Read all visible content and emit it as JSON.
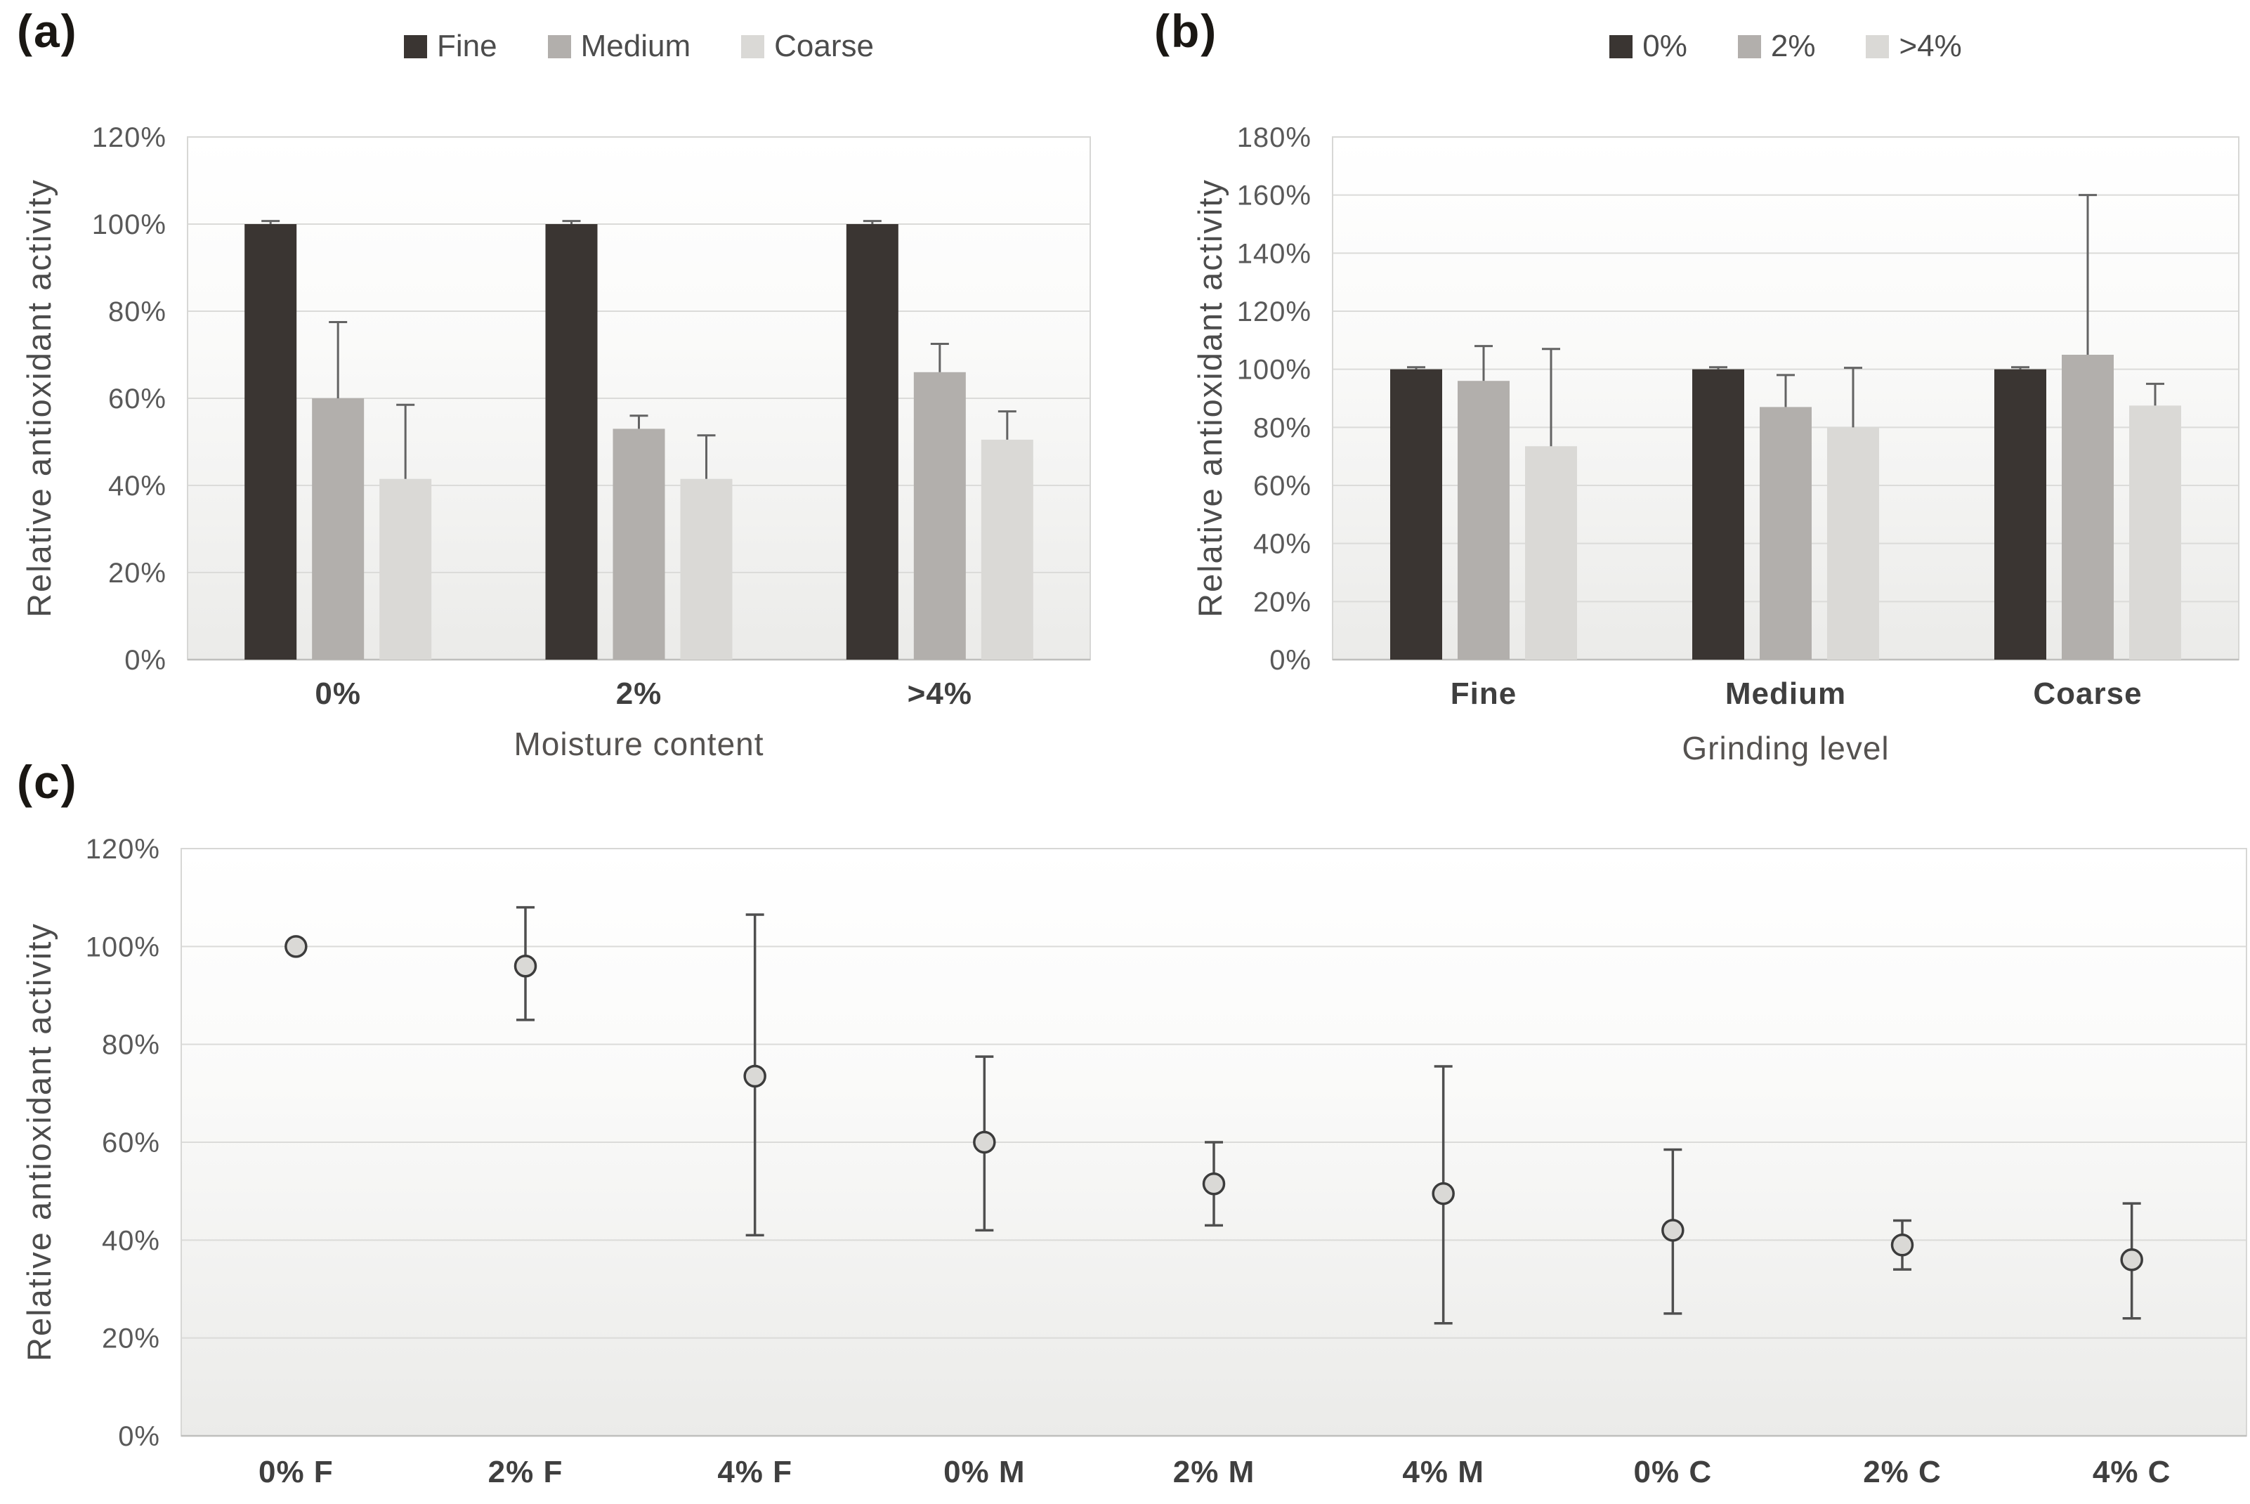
{
  "ui_colors": {
    "series_dark": "#3a3532",
    "series_medium": "#b2afac",
    "series_light": "#dad9d6",
    "error_bar": "#636363",
    "gridline": "#dbdbd9",
    "axis_line": "#bfbfbd",
    "tick_text": "#595959",
    "category_text": "#3f3f3f"
  },
  "chart_data": [
    {
      "panel_label": "(a)",
      "type": "bar",
      "title": "",
      "categories": [
        "0%",
        "2%",
        ">4%"
      ],
      "series": [
        {
          "name": "Fine",
          "color": "#3a3532",
          "values": [
            100,
            100,
            100
          ],
          "err_up": [
            0.7,
            0.7,
            0.7
          ]
        },
        {
          "name": "Medium",
          "color": "#b2afac",
          "values": [
            60,
            53,
            66
          ],
          "err_up": [
            17.5,
            3,
            6.5
          ]
        },
        {
          "name": "Coarse",
          "color": "#dad9d6",
          "values": [
            41.5,
            41.5,
            50.5
          ],
          "err_up": [
            17,
            10,
            6.5
          ]
        }
      ],
      "xlabel": "Moisture content",
      "ylabel": "Relative antioxidant activity",
      "ylim": [
        0,
        120
      ],
      "ytick_step": 20,
      "ytick_format": "percent",
      "grid": true,
      "legend_position": "top"
    },
    {
      "panel_label": "(b)",
      "type": "bar",
      "title": "",
      "categories": [
        "Fine",
        "Medium",
        "Coarse"
      ],
      "series": [
        {
          "name": "0%",
          "color": "#3a3532",
          "values": [
            100,
            100,
            100
          ],
          "err_up": [
            0.7,
            0.7,
            0.7
          ]
        },
        {
          "name": "2%",
          "color": "#b2afac",
          "values": [
            96,
            87,
            105
          ],
          "err_up": [
            12,
            11,
            55
          ]
        },
        {
          "name": ">4%",
          "color": "#dad9d6",
          "values": [
            73.5,
            80,
            87.5
          ],
          "err_up": [
            33.5,
            20.5,
            7.5
          ]
        }
      ],
      "xlabel": "Grinding level",
      "ylabel": "Relative antioxidant activity",
      "ylim": [
        0,
        180
      ],
      "ytick_step": 20,
      "ytick_format": "percent",
      "grid": true,
      "legend_position": "top"
    },
    {
      "panel_label": "(c)",
      "type": "scatter",
      "title": "",
      "categories": [
        "0% F",
        "2% F",
        "4% F",
        "0% M",
        "2% M",
        "4% M",
        "0% C",
        "2% C",
        "4% C"
      ],
      "values": [
        100,
        96,
        73.5,
        60,
        51.5,
        49.5,
        42,
        39,
        36
      ],
      "err_up": [
        0,
        12,
        33,
        17.5,
        8.5,
        26,
        16.5,
        5,
        11.5
      ],
      "err_down": [
        0,
        11,
        32.5,
        18,
        8.5,
        26.5,
        17,
        5,
        12
      ],
      "marker_fill": "#dad9d6",
      "marker_stroke": "#3c3c3c",
      "xlabel": "",
      "ylabel": "Relative antioxidant activity",
      "ylim": [
        0,
        120
      ],
      "ytick_step": 20,
      "ytick_format": "percent",
      "grid": true,
      "legend_position": "none"
    }
  ]
}
